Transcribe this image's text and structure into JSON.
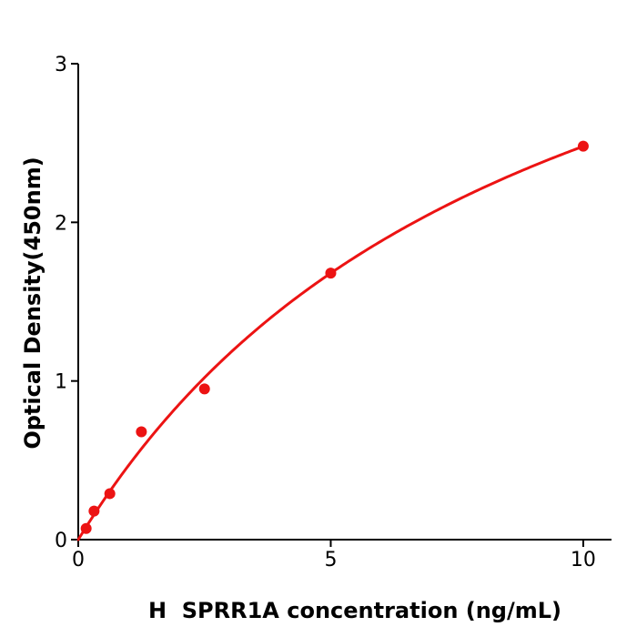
{
  "chart_data": {
    "type": "scatter",
    "title": "",
    "xlabel": "H  SPRR1A concentration (ng/mL)",
    "ylabel": "Optical Density(450nm)",
    "xlim": [
      0,
      10.56
    ],
    "ylim": [
      0,
      3
    ],
    "grid": false,
    "legend": null,
    "xticks": [
      {
        "value": 0,
        "label": "0"
      },
      {
        "value": 5,
        "label": "5"
      },
      {
        "value": 10,
        "label": "10"
      }
    ],
    "yticks": [
      {
        "value": 0,
        "label": "0"
      },
      {
        "value": 1,
        "label": "1"
      },
      {
        "value": 2,
        "label": "2"
      },
      {
        "value": 3,
        "label": "3"
      }
    ],
    "series": [
      {
        "name": "standard-points",
        "type": "scatter",
        "color": "#ec1313",
        "marker_radius": 6,
        "points": [
          {
            "x": 0.156,
            "y": 0.07
          },
          {
            "x": 0.313,
            "y": 0.18
          },
          {
            "x": 0.625,
            "y": 0.29
          },
          {
            "x": 1.25,
            "y": 0.68
          },
          {
            "x": 2.5,
            "y": 0.95
          },
          {
            "x": 5,
            "y": 1.68
          },
          {
            "x": 10,
            "y": 2.48
          }
        ]
      },
      {
        "name": "fitted-curve",
        "type": "line",
        "color": "#ec1313",
        "line_width": 3,
        "fit": {
          "model": "michaelis_menten",
          "vmax": 4.73,
          "km": 9.08,
          "x_start": 0,
          "x_end": 10
        }
      }
    ],
    "colors": {
      "accent": "#ec1313",
      "axis": "#000000",
      "background": "#ffffff"
    }
  }
}
